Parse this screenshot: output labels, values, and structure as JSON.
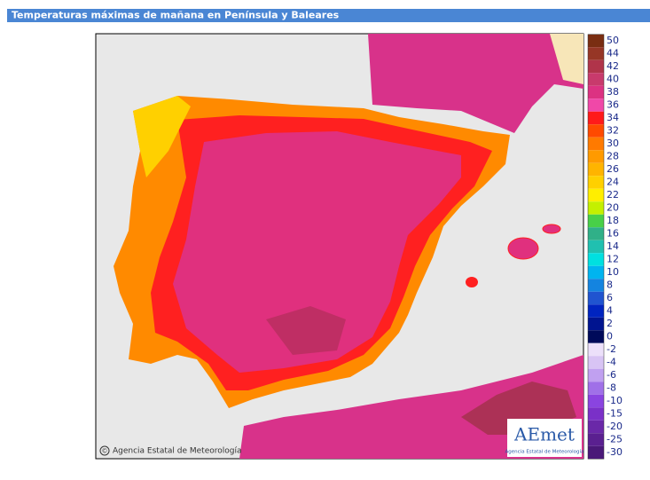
{
  "header": {
    "title": "Temperaturas máximas de mañana en Península y Baleares"
  },
  "map": {
    "copyright": "Agencia Estatal de Meteorología",
    "copyright_symbol": "©",
    "logo": "AEmet",
    "logo_subtitle": "Agencia Estatal de Meteorología"
  },
  "legend": {
    "items": [
      {
        "label": "50",
        "color": "#7a2e12"
      },
      {
        "label": "44",
        "color": "#963626"
      },
      {
        "label": "42",
        "color": "#b0344a"
      },
      {
        "label": "40",
        "color": "#c83a6c"
      },
      {
        "label": "38",
        "color": "#dc3282"
      },
      {
        "label": "36",
        "color": "#f048a8"
      },
      {
        "label": "34",
        "color": "#ff1a1a"
      },
      {
        "label": "32",
        "color": "#ff4a00"
      },
      {
        "label": "30",
        "color": "#ff7a00"
      },
      {
        "label": "28",
        "color": "#ff9a00"
      },
      {
        "label": "26",
        "color": "#ffb400"
      },
      {
        "label": "24",
        "color": "#ffd000"
      },
      {
        "label": "22",
        "color": "#ffee00"
      },
      {
        "label": "20",
        "color": "#c4f000"
      },
      {
        "label": "18",
        "color": "#48d048"
      },
      {
        "label": "16",
        "color": "#30b088"
      },
      {
        "label": "14",
        "color": "#20c0b0"
      },
      {
        "label": "12",
        "color": "#00e0e0"
      },
      {
        "label": "10",
        "color": "#00b4f0"
      },
      {
        "label": "8",
        "color": "#1484e0"
      },
      {
        "label": "6",
        "color": "#2054d0"
      },
      {
        "label": "4",
        "color": "#0024c0"
      },
      {
        "label": "2",
        "color": "#001490"
      },
      {
        "label": "0",
        "color": "#000a5a"
      },
      {
        "label": "-2",
        "color": "#ece0fa"
      },
      {
        "label": "-4",
        "color": "#d8c4f4"
      },
      {
        "label": "-6",
        "color": "#c0a0f0"
      },
      {
        "label": "-8",
        "color": "#a070e8"
      },
      {
        "label": "-10",
        "color": "#8a44e0"
      },
      {
        "label": "-15",
        "color": "#7a30c8"
      },
      {
        "label": "-20",
        "color": "#6a28a8"
      },
      {
        "label": "-25",
        "color": "#5a2090"
      },
      {
        "label": "-30",
        "color": "#4a1878"
      }
    ]
  }
}
